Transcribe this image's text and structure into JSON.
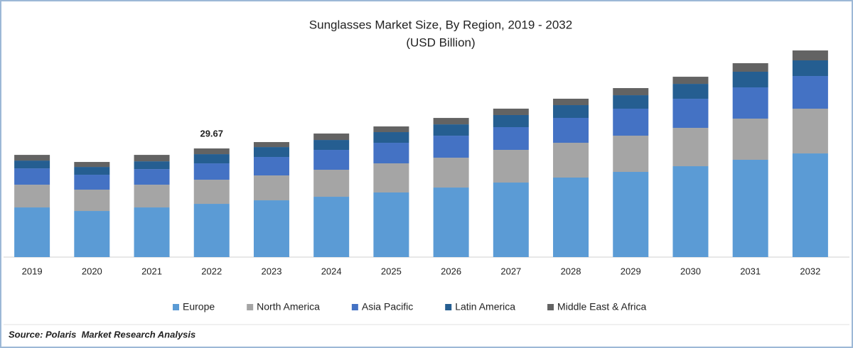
{
  "chart_data": {
    "type": "stacked-bar",
    "title": "Sunglasses Market Size, By Region, 2019 - 2032",
    "subtitle": "(USD Billion)",
    "categories": [
      "2019",
      "2020",
      "2021",
      "2022",
      "2023",
      "2024",
      "2025",
      "2026",
      "2027",
      "2028",
      "2029",
      "2030",
      "2031",
      "2032"
    ],
    "series": [
      {
        "name": "Europe",
        "color": "#5b9bd5",
        "values": [
          13.57,
          12.6,
          13.57,
          14.54,
          15.51,
          16.48,
          17.65,
          19.0,
          20.36,
          21.72,
          23.27,
          24.82,
          26.57,
          28.31
        ]
      },
      {
        "name": "North America",
        "color": "#a5a5a5",
        "values": [
          6.2,
          5.82,
          6.2,
          6.59,
          6.79,
          7.37,
          7.95,
          8.14,
          8.92,
          9.5,
          9.89,
          10.47,
          11.25,
          12.22
        ]
      },
      {
        "name": "Asia Pacific",
        "color": "#4472c4",
        "values": [
          4.46,
          4.07,
          4.26,
          4.46,
          5.04,
          5.43,
          5.62,
          6.01,
          6.21,
          6.79,
          7.37,
          7.95,
          8.53,
          8.92
        ]
      },
      {
        "name": "Latin America",
        "color": "#255e91",
        "values": [
          2.13,
          2.13,
          2.13,
          2.52,
          2.71,
          2.71,
          2.91,
          3.1,
          3.3,
          3.49,
          3.68,
          4.07,
          4.27,
          4.27
        ]
      },
      {
        "name": "Middle East & Africa",
        "color": "#636363",
        "values": [
          1.55,
          1.36,
          1.75,
          1.56,
          1.36,
          1.75,
          1.55,
          1.75,
          1.75,
          1.75,
          1.94,
          1.94,
          2.33,
          2.71
        ]
      }
    ],
    "annotation": {
      "category": "2022",
      "value": 29.67
    },
    "ylim": [
      0,
      57.6
    ],
    "legend": "bottom",
    "source": "Source: Polaris  Market Research Analysis"
  }
}
